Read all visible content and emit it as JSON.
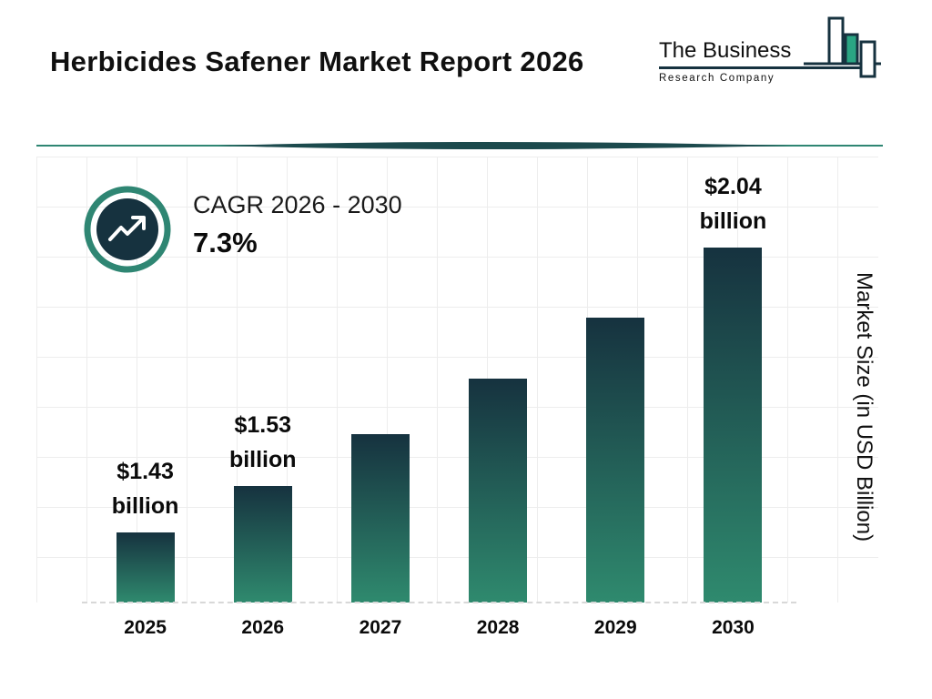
{
  "page": {
    "title": "Herbicides Safener Market Report 2026"
  },
  "brand": {
    "line1": "The Business",
    "line2": "Research Company"
  },
  "cagr": {
    "label": "CAGR 2026 - 2030",
    "value": "7.3%"
  },
  "chart_data": {
    "type": "bar",
    "title": "Herbicides Safener Market Report 2026",
    "categories": [
      "2025",
      "2026",
      "2027",
      "2028",
      "2029",
      "2030"
    ],
    "values": [
      1.43,
      1.53,
      1.64,
      1.76,
      1.89,
      2.04
    ],
    "value_labels": [
      "$1.43 billion",
      "$1.53 billion",
      "",
      "",
      "",
      "$2.04 billion"
    ],
    "xlabel": "",
    "ylabel": "Market Size (in USD Billion)",
    "unit": "USD Billion",
    "ylim": [
      1.28,
      2.04
    ],
    "grid": true,
    "legend": "none",
    "colors": {
      "bar_top": "#16323f",
      "bar_bottom": "#2f8a6e",
      "accent_teal": "#2f8673",
      "navy": "#16323f",
      "logo_teal": "#2aa583"
    }
  }
}
